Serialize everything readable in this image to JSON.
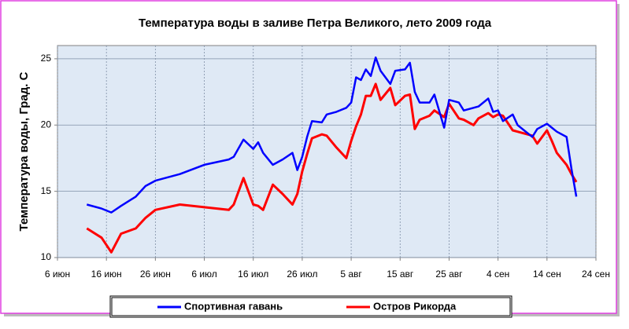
{
  "chart_data": {
    "type": "line",
    "title": "Температура воды в заливе Петра Великого,  лето 2009 года",
    "y_label": "Температура воды, Град. С",
    "x": [
      "2009-06-12",
      "2009-06-15",
      "2009-06-17",
      "2009-06-19",
      "2009-06-22",
      "2009-06-24",
      "2009-06-26",
      "2009-07-01",
      "2009-07-06",
      "2009-07-11",
      "2009-07-12",
      "2009-07-14",
      "2009-07-16",
      "2009-07-17",
      "2009-07-18",
      "2009-07-20",
      "2009-07-22",
      "2009-07-24",
      "2009-07-25",
      "2009-07-26",
      "2009-07-27",
      "2009-07-28",
      "2009-07-30",
      "2009-07-31",
      "2009-08-02",
      "2009-08-04",
      "2009-08-05",
      "2009-08-06",
      "2009-08-07",
      "2009-08-08",
      "2009-08-09",
      "2009-08-10",
      "2009-08-11",
      "2009-08-13",
      "2009-08-14",
      "2009-08-16",
      "2009-08-17",
      "2009-08-18",
      "2009-08-19",
      "2009-08-21",
      "2009-08-22",
      "2009-08-24",
      "2009-08-25",
      "2009-08-27",
      "2009-08-28",
      "2009-08-30",
      "2009-08-31",
      "2009-09-02",
      "2009-09-03",
      "2009-09-04",
      "2009-09-05",
      "2009-09-07",
      "2009-09-08",
      "2009-09-10",
      "2009-09-11",
      "2009-09-12",
      "2009-09-14",
      "2009-09-15",
      "2009-09-16",
      "2009-09-18",
      "2009-09-19",
      "2009-09-20"
    ],
    "series": [
      {
        "name": "Спортивная гавань",
        "color": "#0000ff",
        "values": [
          14.0,
          13.7,
          13.4,
          13.9,
          14.6,
          15.4,
          15.8,
          16.3,
          17.0,
          17.4,
          17.6,
          18.9,
          18.2,
          18.7,
          17.9,
          17.0,
          17.4,
          17.9,
          16.6,
          17.6,
          19.1,
          20.3,
          20.2,
          20.8,
          21.0,
          21.3,
          21.7,
          23.6,
          23.4,
          24.2,
          23.7,
          25.1,
          24.1,
          23.1,
          24.1,
          24.2,
          24.7,
          22.5,
          21.7,
          21.7,
          22.3,
          19.8,
          21.9,
          21.7,
          21.1,
          21.3,
          21.4,
          22.0,
          21.0,
          21.1,
          20.3,
          20.8,
          20.0,
          19.4,
          19.1,
          19.7,
          20.1,
          19.8,
          19.5,
          19.1,
          16.7,
          14.6
        ]
      },
      {
        "name": "Остров Рикорда",
        "color": "#ff0000",
        "values": [
          12.2,
          11.5,
          10.4,
          11.8,
          12.2,
          13.0,
          13.6,
          14.0,
          13.8,
          13.6,
          14.0,
          16.0,
          14.0,
          13.9,
          13.6,
          15.5,
          14.8,
          14.0,
          14.8,
          16.5,
          17.8,
          19.0,
          19.3,
          19.2,
          18.3,
          17.5,
          18.8,
          19.9,
          20.8,
          22.2,
          22.2,
          23.1,
          21.9,
          22.8,
          21.5,
          22.2,
          22.3,
          19.7,
          20.4,
          20.7,
          21.1,
          20.6,
          21.6,
          20.5,
          20.4,
          20.0,
          20.5,
          20.9,
          20.6,
          20.8,
          20.7,
          19.6,
          19.5,
          19.3,
          19.2,
          18.6,
          19.6,
          18.8,
          17.9,
          17.0,
          16.3,
          15.7
        ]
      }
    ],
    "xlim": [
      "2009-06-06",
      "2009-09-24"
    ],
    "xticks": [
      {
        "value": "2009-06-06",
        "label": "6 июн"
      },
      {
        "value": "2009-06-16",
        "label": "16 июн"
      },
      {
        "value": "2009-06-26",
        "label": "26 июн"
      },
      {
        "value": "2009-07-06",
        "label": "6 июл"
      },
      {
        "value": "2009-07-16",
        "label": "16 июл"
      },
      {
        "value": "2009-07-26",
        "label": "26 июл"
      },
      {
        "value": "2009-08-05",
        "label": "5 авг"
      },
      {
        "value": "2009-08-15",
        "label": "15 авг"
      },
      {
        "value": "2009-08-25",
        "label": "25 авг"
      },
      {
        "value": "2009-09-04",
        "label": "4 сен"
      },
      {
        "value": "2009-09-14",
        "label": "14 сен"
      },
      {
        "value": "2009-09-24",
        "label": "24 сен"
      }
    ],
    "ylim": [
      10,
      26
    ],
    "yticks": [
      10,
      15,
      20,
      25
    ],
    "grid": true,
    "legend": "bottom"
  }
}
